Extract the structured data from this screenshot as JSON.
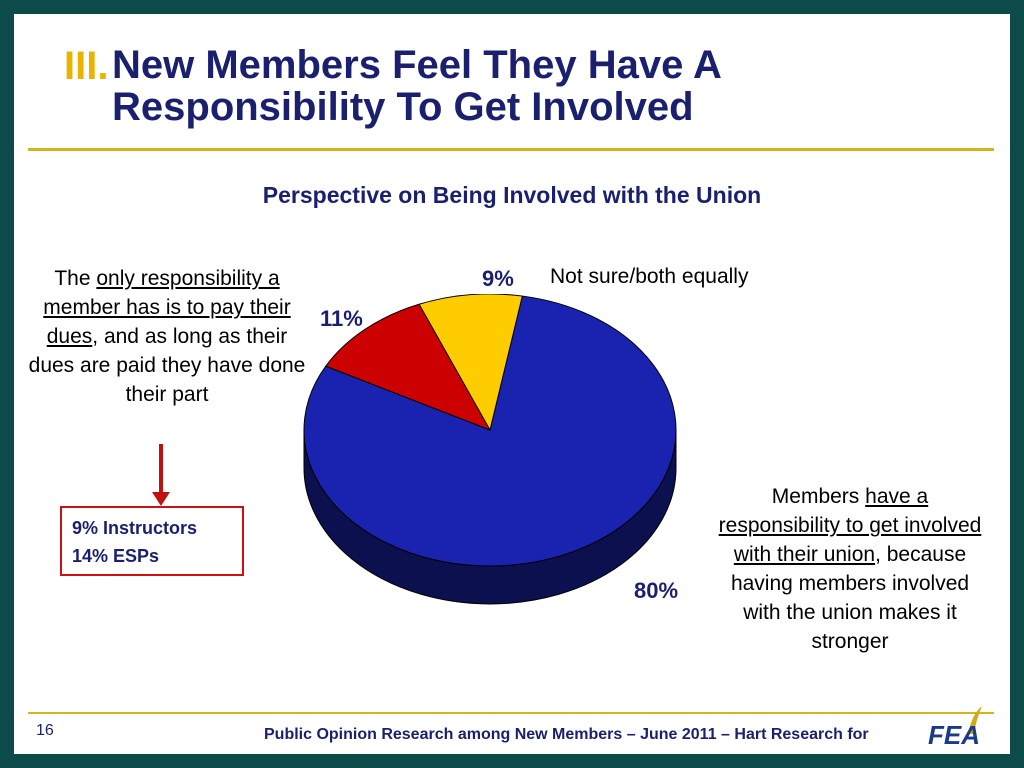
{
  "header": {
    "title_num": "III.",
    "title_line1": "New Members Feel They Have A",
    "title_line2": "Responsibility To Get Involved"
  },
  "chart_data": {
    "type": "pie",
    "title": "Perspective on Being Involved with the Union",
    "slices": [
      {
        "label": "Members have a responsibility to get involved with their union, because having members involved with the union makes it stronger",
        "value": 80,
        "display": "80%",
        "color": "#1a23b0"
      },
      {
        "label": "The only responsibility a member has is to pay their dues, and as long as their dues are paid they have done their part",
        "value": 11,
        "display": "11%",
        "color": "#cc0000"
      },
      {
        "label": "Not sure/both equally",
        "value": 9,
        "display": "9%",
        "color": "#ffcc00"
      }
    ]
  },
  "annotations": {
    "left_pre": "The ",
    "left_underlined": "only responsibility a member has is to pay their dues",
    "left_post": ", and as long as their dues are paid they have done their part",
    "right_top": "Not sure/both equally",
    "right_pre": "Members ",
    "right_underlined": "have a responsibility to get involved with their union",
    "right_post": ", because having members involved with the union makes it stronger"
  },
  "breakdown": {
    "line1": "9% Instructors",
    "line2": "14% ESPs"
  },
  "footer": {
    "page": "16",
    "text": "Public Opinion Research among New Members – June 2011 – Hart Research for",
    "logo": "FEA"
  }
}
